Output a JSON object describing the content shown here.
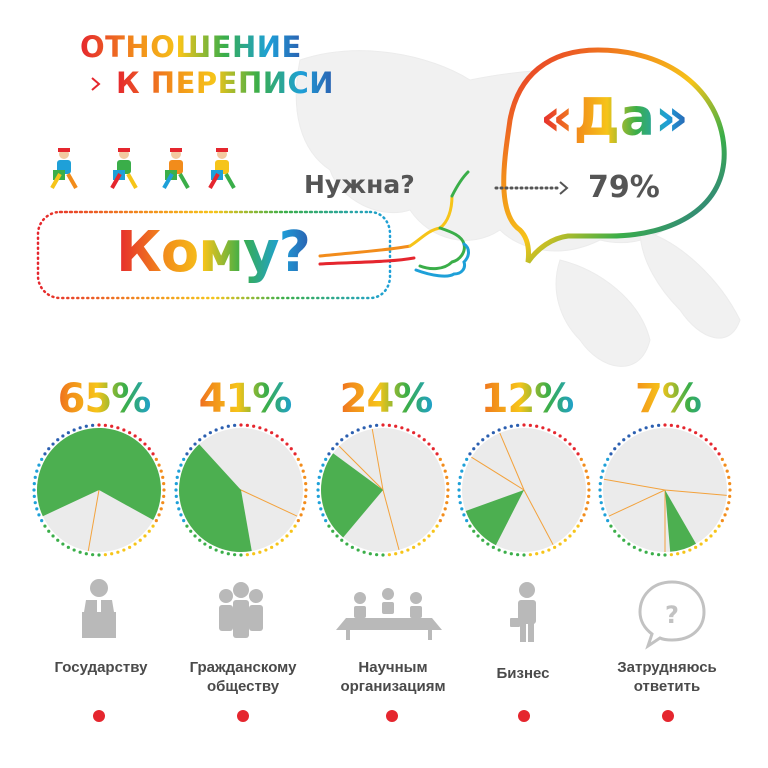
{
  "header": {
    "title_line1": "ОТНОШЕНИЕ",
    "title_line2": "К ПЕРЕПИСИ"
  },
  "question": {
    "needed": "Нужна?",
    "who": "Кому?"
  },
  "answer": {
    "yes": "«Да»",
    "yes_percent": "79%"
  },
  "colors": {
    "pie_fill": "#4caf50",
    "pie_bg": "#ebebeb",
    "pie_lines": "#f3a23c",
    "ring": [
      "#e5262e",
      "#f28c1b",
      "#f6c419",
      "#3aae49",
      "#1ea0d8",
      "#2b5fb0"
    ]
  },
  "chart_data": {
    "type": "pie",
    "categories": [
      "Государству",
      "Гражданскому обществу",
      "Научным организациям",
      "Бизнес",
      "Затрудняюсь ответить"
    ],
    "values": [
      65,
      41,
      24,
      12,
      7
    ],
    "value_labels": [
      "65%",
      "41%",
      "24%",
      "12%",
      "7%"
    ],
    "labels_line1": [
      "Государству",
      "Гражданскому",
      "Научным",
      "Бизнес",
      "Затрудняюсь"
    ],
    "labels_line2": [
      "",
      "обществу",
      "организациям",
      "",
      "ответить"
    ],
    "icons": [
      "speaker-at-podium-icon",
      "group-of-people-icon",
      "meeting-table-icon",
      "businessman-with-briefcase-icon",
      "question-bubble-icon"
    ]
  }
}
